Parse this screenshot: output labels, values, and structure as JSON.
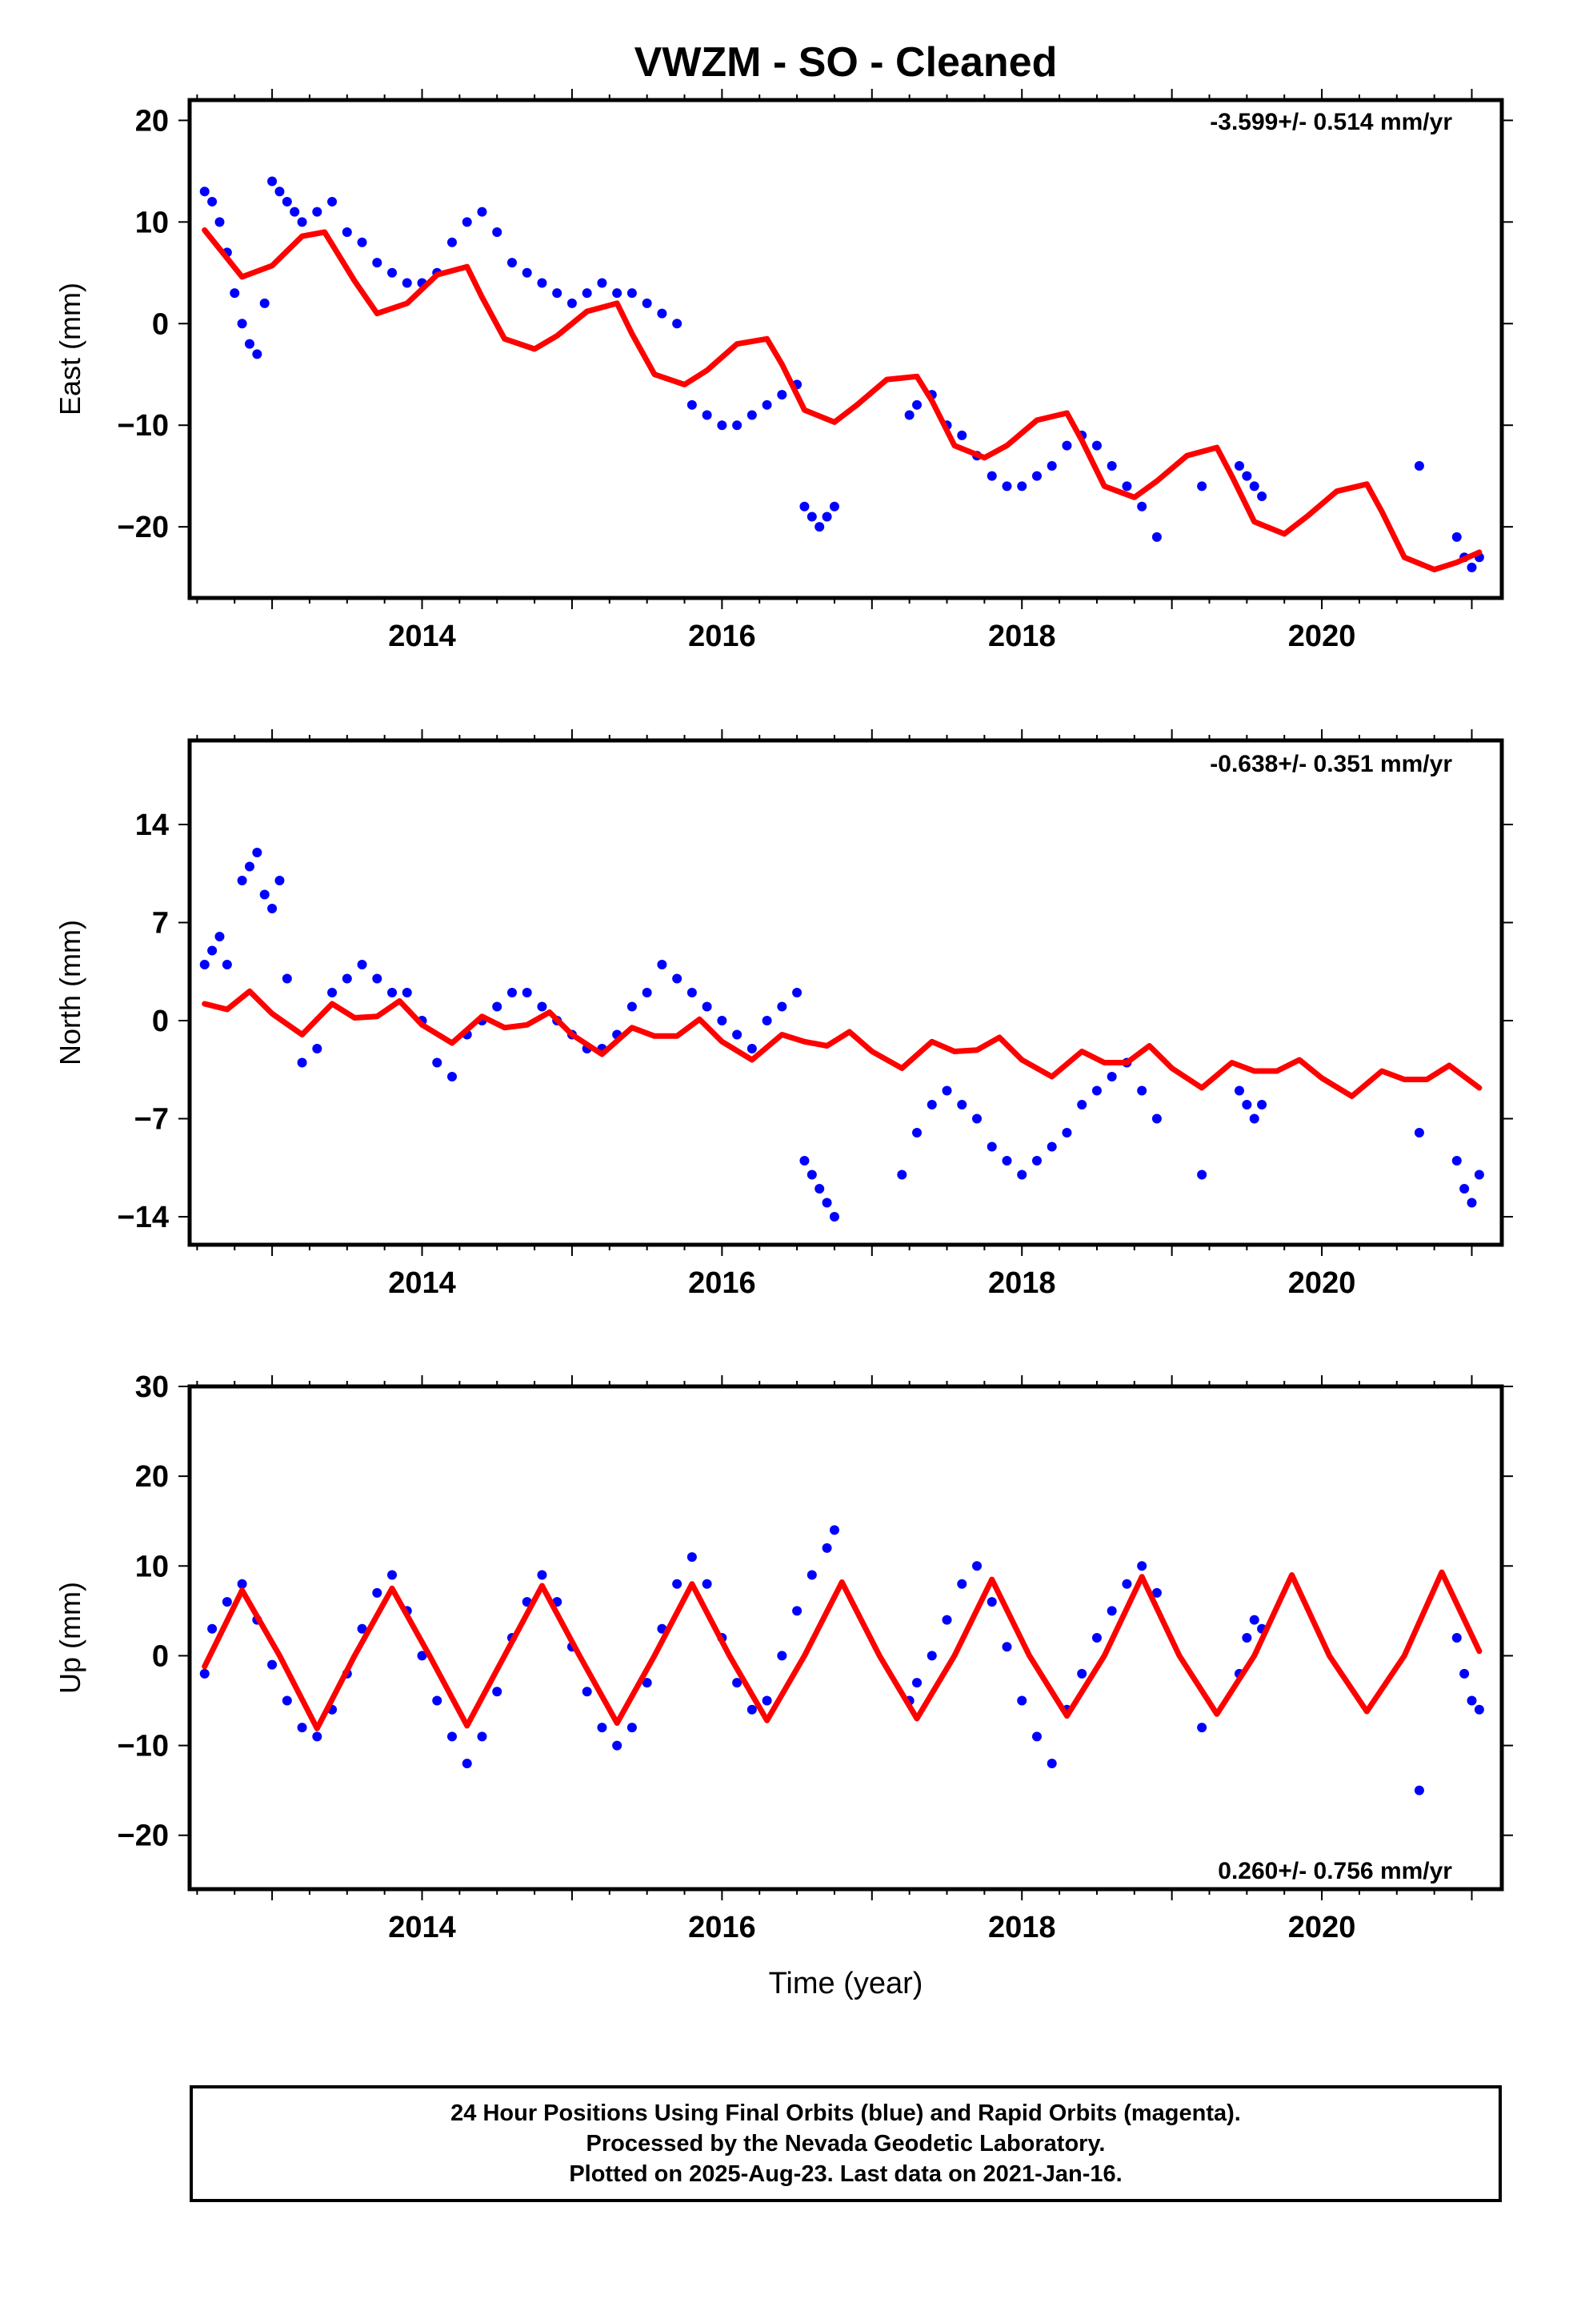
{
  "title": "VWZM  - SO - Cleaned",
  "xlabel": "Time (year)",
  "footer": {
    "line1": "24 Hour Positions Using Final Orbits (blue) and Rapid Orbits (magenta).",
    "line2": "Processed by the Nevada Geodetic Laboratory.",
    "line3": "Plotted on 2025-Aug-23. Last data on 2021-Jan-16."
  },
  "colors": {
    "observations": "#0000ff",
    "model": "#ff0000",
    "frame": "#000000"
  },
  "chart_data": [
    {
      "type": "scatter",
      "ylabel": "East (mm)",
      "rate_label": "-3.599+/- 0.514 mm/yr",
      "xlim": [
        2012.45,
        2021.2
      ],
      "ylim": [
        -27,
        22
      ],
      "xticks": [
        2014,
        2016,
        2018,
        2020
      ],
      "yticks": [
        20,
        10,
        0,
        -10,
        -20
      ],
      "series": [
        {
          "kind": "points",
          "x": [
            2012.55,
            2012.6,
            2012.65,
            2012.7,
            2012.75,
            2012.8,
            2012.85,
            2012.9,
            2012.95,
            2013.0,
            2013.05,
            2013.1,
            2013.15,
            2013.2,
            2013.3,
            2013.4,
            2013.5,
            2013.6,
            2013.7,
            2013.8,
            2013.9,
            2014.0,
            2014.1,
            2014.2,
            2014.3,
            2014.4,
            2014.5,
            2014.6,
            2014.7,
            2014.8,
            2014.9,
            2015.0,
            2015.1,
            2015.2,
            2015.3,
            2015.4,
            2015.5,
            2015.6,
            2015.7,
            2015.8,
            2015.9,
            2016.0,
            2016.1,
            2016.2,
            2016.3,
            2016.4,
            2016.5,
            2016.55,
            2016.6,
            2016.65,
            2016.7,
            2016.75,
            2017.25,
            2017.3,
            2017.4,
            2017.5,
            2017.6,
            2017.7,
            2017.8,
            2017.9,
            2018.0,
            2018.1,
            2018.2,
            2018.3,
            2018.4,
            2018.5,
            2018.6,
            2018.7,
            2018.8,
            2018.9,
            2019.2,
            2019.45,
            2019.5,
            2019.55,
            2019.6,
            2020.65,
            2020.9,
            2020.95,
            2021.0,
            2021.05
          ],
          "y": [
            13,
            12,
            10,
            7,
            3,
            0,
            -2,
            -3,
            2,
            14,
            13,
            12,
            11,
            10,
            11,
            12,
            9,
            8,
            6,
            5,
            4,
            4,
            5,
            8,
            10,
            11,
            9,
            6,
            5,
            4,
            3,
            2,
            3,
            4,
            3,
            3,
            2,
            1,
            0,
            -8,
            -9,
            -10,
            -10,
            -9,
            -8,
            -7,
            -6,
            -18,
            -19,
            -20,
            -19,
            -18,
            -9,
            -8,
            -7,
            -10,
            -11,
            -13,
            -15,
            -16,
            -16,
            -15,
            -14,
            -12,
            -11,
            -12,
            -14,
            -16,
            -18,
            -21,
            -16,
            -14,
            -15,
            -16,
            -17,
            -14,
            -21,
            -23,
            -24,
            -23
          ]
        },
        {
          "kind": "model",
          "x": [
            2012.55,
            2012.8,
            2013.0,
            2013.2,
            2013.35,
            2013.55,
            2013.7,
            2013.9,
            2014.1,
            2014.3,
            2014.4,
            2014.55,
            2014.75,
            2014.9,
            2015.1,
            2015.3,
            2015.4,
            2015.55,
            2015.75,
            2015.9,
            2016.1,
            2016.3,
            2016.4,
            2016.55,
            2016.75,
            2016.9,
            2017.1,
            2017.3,
            2017.4,
            2017.55,
            2017.75,
            2017.9,
            2018.1,
            2018.3,
            2018.4,
            2018.55,
            2018.75,
            2018.9,
            2019.1,
            2019.3,
            2019.4,
            2019.55,
            2019.75,
            2019.9,
            2020.1,
            2020.3,
            2020.4,
            2020.55,
            2020.75,
            2020.9,
            2021.05
          ],
          "y": [
            9.2,
            4.6,
            5.7,
            8.6,
            9.0,
            4.2,
            1.0,
            2.0,
            4.8,
            5.6,
            2.6,
            -1.5,
            -2.5,
            -1.2,
            1.2,
            2.0,
            -1.0,
            -5.0,
            -6.0,
            -4.6,
            -2.0,
            -1.5,
            -4.0,
            -8.5,
            -9.7,
            -8.0,
            -5.5,
            -5.2,
            -7.6,
            -12.0,
            -13.2,
            -12.0,
            -9.5,
            -8.8,
            -11.5,
            -16.0,
            -17.1,
            -15.5,
            -13.0,
            -12.2,
            -15.0,
            -19.5,
            -20.7,
            -19.0,
            -16.5,
            -15.8,
            -18.5,
            -23.0,
            -24.2,
            -23.5,
            -22.5
          ]
        }
      ]
    },
    {
      "type": "scatter",
      "ylabel": "North (mm)",
      "rate_label": "-0.638+/- 0.351 mm/yr",
      "xlim": [
        2012.45,
        2021.2
      ],
      "ylim": [
        -16,
        20
      ],
      "xticks": [
        2014,
        2016,
        2018,
        2020
      ],
      "yticks": [
        14,
        7,
        0,
        -7,
        -14
      ],
      "series": [
        {
          "kind": "points",
          "x": [
            2012.55,
            2012.6,
            2012.65,
            2012.7,
            2012.8,
            2012.85,
            2012.9,
            2012.95,
            2013.0,
            2013.05,
            2013.1,
            2013.2,
            2013.3,
            2013.4,
            2013.5,
            2013.6,
            2013.7,
            2013.8,
            2013.9,
            2014.0,
            2014.1,
            2014.2,
            2014.3,
            2014.4,
            2014.5,
            2014.6,
            2014.7,
            2014.8,
            2014.9,
            2015.0,
            2015.1,
            2015.2,
            2015.3,
            2015.4,
            2015.5,
            2015.6,
            2015.7,
            2015.8,
            2015.9,
            2016.0,
            2016.1,
            2016.2,
            2016.3,
            2016.4,
            2016.5,
            2016.55,
            2016.6,
            2016.65,
            2016.7,
            2016.75,
            2017.2,
            2017.3,
            2017.4,
            2017.5,
            2017.6,
            2017.7,
            2017.8,
            2017.9,
            2018.0,
            2018.1,
            2018.2,
            2018.3,
            2018.4,
            2018.5,
            2018.6,
            2018.7,
            2018.8,
            2018.9,
            2019.2,
            2019.45,
            2019.5,
            2019.55,
            2019.6,
            2020.65,
            2020.9,
            2020.95,
            2021.0,
            2021.05
          ],
          "y": [
            4,
            5,
            6,
            4,
            10,
            11,
            12,
            9,
            8,
            10,
            3,
            -3,
            -2,
            2,
            3,
            4,
            3,
            2,
            2,
            0,
            -3,
            -4,
            -1,
            0,
            1,
            2,
            2,
            1,
            0,
            -1,
            -2,
            -2,
            -1,
            1,
            2,
            4,
            3,
            2,
            1,
            0,
            -1,
            -2,
            0,
            1,
            2,
            -10,
            -11,
            -12,
            -13,
            -14,
            -11,
            -8,
            -6,
            -5,
            -6,
            -7,
            -9,
            -10,
            -11,
            -10,
            -9,
            -8,
            -6,
            -5,
            -4,
            -3,
            -5,
            -7,
            -11,
            -5,
            -6,
            -7,
            -6,
            -8,
            -10,
            -12,
            -13,
            -11
          ]
        },
        {
          "kind": "model",
          "x": [
            2012.55,
            2012.7,
            2012.85,
            2013.0,
            2013.2,
            2013.4,
            2013.55,
            2013.7,
            2013.85,
            2014.0,
            2014.2,
            2014.4,
            2014.55,
            2014.7,
            2014.85,
            2015.0,
            2015.2,
            2015.4,
            2015.55,
            2015.7,
            2015.85,
            2016.0,
            2016.2,
            2016.4,
            2016.55,
            2016.7,
            2016.85,
            2017.0,
            2017.2,
            2017.4,
            2017.55,
            2017.7,
            2017.85,
            2018.0,
            2018.2,
            2018.4,
            2018.55,
            2018.7,
            2018.85,
            2019.0,
            2019.2,
            2019.4,
            2019.55,
            2019.7,
            2019.85,
            2020.0,
            2020.2,
            2020.4,
            2020.55,
            2020.7,
            2020.85,
            2021.05
          ],
          "y": [
            1.2,
            0.8,
            2.1,
            0.5,
            -1.0,
            1.2,
            0.2,
            0.3,
            1.4,
            -0.3,
            -1.6,
            0.3,
            -0.5,
            -0.3,
            0.6,
            -1.0,
            -2.4,
            -0.5,
            -1.1,
            -1.1,
            0.1,
            -1.5,
            -2.8,
            -1.0,
            -1.5,
            -1.8,
            -0.8,
            -2.2,
            -3.4,
            -1.5,
            -2.2,
            -2.1,
            -1.2,
            -2.8,
            -4.0,
            -2.2,
            -3.0,
            -3.0,
            -1.8,
            -3.4,
            -4.8,
            -3.0,
            -3.6,
            -3.6,
            -2.8,
            -4.1,
            -5.4,
            -3.6,
            -4.2,
            -4.2,
            -3.2,
            -4.8
          ]
        }
      ]
    },
    {
      "type": "scatter",
      "ylabel": "Up (mm)",
      "rate_label": "0.260+/- 0.756 mm/yr",
      "xlim": [
        2012.45,
        2021.2
      ],
      "ylim": [
        -26,
        30
      ],
      "xticks": [
        2014,
        2016,
        2018,
        2020
      ],
      "yticks": [
        30,
        20,
        10,
        0,
        -10,
        -20
      ],
      "series": [
        {
          "kind": "points",
          "x": [
            2012.55,
            2012.6,
            2012.7,
            2012.8,
            2012.9,
            2013.0,
            2013.1,
            2013.2,
            2013.3,
            2013.4,
            2013.5,
            2013.6,
            2013.7,
            2013.8,
            2013.9,
            2014.0,
            2014.1,
            2014.2,
            2014.3,
            2014.4,
            2014.5,
            2014.6,
            2014.7,
            2014.8,
            2014.9,
            2015.0,
            2015.1,
            2015.2,
            2015.3,
            2015.4,
            2015.5,
            2015.6,
            2015.7,
            2015.8,
            2015.9,
            2016.0,
            2016.1,
            2016.2,
            2016.3,
            2016.4,
            2016.5,
            2016.6,
            2016.7,
            2016.75,
            2017.25,
            2017.3,
            2017.4,
            2017.5,
            2017.6,
            2017.7,
            2017.8,
            2017.9,
            2018.0,
            2018.1,
            2018.2,
            2018.3,
            2018.4,
            2018.5,
            2018.6,
            2018.7,
            2018.8,
            2018.9,
            2019.2,
            2019.45,
            2019.5,
            2019.55,
            2019.6,
            2020.65,
            2020.9,
            2020.95,
            2021.0,
            2021.05
          ],
          "y": [
            -2,
            3,
            6,
            8,
            4,
            -1,
            -5,
            -8,
            -9,
            -6,
            -2,
            3,
            7,
            9,
            5,
            0,
            -5,
            -9,
            -12,
            -9,
            -4,
            2,
            6,
            9,
            6,
            1,
            -4,
            -8,
            -10,
            -8,
            -3,
            3,
            8,
            11,
            8,
            2,
            -3,
            -6,
            -5,
            0,
            5,
            9,
            12,
            14,
            -5,
            -3,
            0,
            4,
            8,
            10,
            6,
            1,
            -5,
            -9,
            -12,
            -6,
            -2,
            2,
            5,
            8,
            10,
            7,
            -8,
            -2,
            2,
            4,
            3,
            -15,
            2,
            -2,
            -5,
            -6
          ]
        },
        {
          "kind": "model",
          "x": [
            2012.55,
            2012.8,
            2013.05,
            2013.3,
            2013.55,
            2013.8,
            2014.05,
            2014.3,
            2014.55,
            2014.8,
            2015.05,
            2015.3,
            2015.55,
            2015.8,
            2016.05,
            2016.3,
            2016.55,
            2016.8,
            2017.05,
            2017.3,
            2017.55,
            2017.8,
            2018.05,
            2018.3,
            2018.55,
            2018.8,
            2019.05,
            2019.3,
            2019.55,
            2019.8,
            2020.05,
            2020.3,
            2020.55,
            2020.8,
            2021.05
          ],
          "y": [
            -1.2,
            7.3,
            0.0,
            -8.1,
            0.0,
            7.5,
            0.0,
            -7.8,
            0.0,
            7.8,
            0.0,
            -7.5,
            0.0,
            8.0,
            0.0,
            -7.2,
            0.0,
            8.2,
            0.0,
            -7.0,
            0.0,
            8.5,
            0.0,
            -6.7,
            0.0,
            8.8,
            0.0,
            -6.5,
            0.0,
            9.0,
            0.0,
            -6.2,
            0.0,
            9.3,
            0.5
          ]
        }
      ]
    }
  ]
}
